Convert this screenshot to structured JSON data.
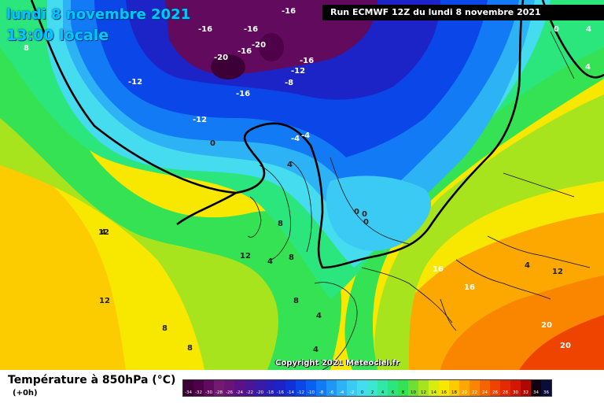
{
  "header": {
    "title_line1": "lundi 8 novembre 2021",
    "title_line2": "13:00 locale",
    "run_label": "Run ECMWF 12Z du lundi 8 novembre 2021"
  },
  "map": {
    "variable": "Température à 850hPa",
    "isotherm_labels": [
      "-16",
      "-16",
      "-16",
      "-20",
      "-16",
      "-20",
      "-16",
      "-12",
      "-8",
      "-12",
      "-16",
      "-12",
      "-4",
      "-4",
      "0",
      "0",
      "4",
      "8",
      "8",
      "4",
      "12",
      "8",
      "8",
      "4",
      "12",
      "8",
      "12",
      "4",
      "0",
      "0",
      "16",
      "16",
      "12",
      "20",
      "20",
      "4",
      "4",
      "4",
      "0",
      "-4",
      "4",
      "8"
    ]
  },
  "legend": {
    "title": "Température à 850hPa (°C)",
    "subtitle": "(+0h)",
    "scale": [
      {
        "label": "-34",
        "color": "#3c0036"
      },
      {
        "label": "-32",
        "color": "#4e0048"
      },
      {
        "label": "-30",
        "color": "#620a5e"
      },
      {
        "label": "-28",
        "color": "#751a72"
      },
      {
        "label": "-26",
        "color": "#6a1478"
      },
      {
        "label": "-24",
        "color": "#5c1286"
      },
      {
        "label": "-22",
        "color": "#4a1696"
      },
      {
        "label": "-20",
        "color": "#3a1aa6"
      },
      {
        "label": "-18",
        "color": "#2a1eb8"
      },
      {
        "label": "-16",
        "color": "#1c24c8"
      },
      {
        "label": "-14",
        "color": "#1030d8"
      },
      {
        "label": "-12",
        "color": "#0a46e8"
      },
      {
        "label": "-10",
        "color": "#0a5ef0"
      },
      {
        "label": "-8",
        "color": "#127af4"
      },
      {
        "label": "-6",
        "color": "#2096f6"
      },
      {
        "label": "-4",
        "color": "#2eb2f6"
      },
      {
        "label": "-2",
        "color": "#3acaf4"
      },
      {
        "label": "0",
        "color": "#44dcee"
      },
      {
        "label": "2",
        "color": "#3ce6d0"
      },
      {
        "label": "4",
        "color": "#32e8a8"
      },
      {
        "label": "6",
        "color": "#2ae67c"
      },
      {
        "label": "8",
        "color": "#34e254"
      },
      {
        "label": "10",
        "color": "#6ee034"
      },
      {
        "label": "12",
        "color": "#a8e41e"
      },
      {
        "label": "14",
        "color": "#d8ec10"
      },
      {
        "label": "16",
        "color": "#f8e800"
      },
      {
        "label": "18",
        "color": "#fccc00"
      },
      {
        "label": "20",
        "color": "#fca800"
      },
      {
        "label": "22",
        "color": "#fa8600"
      },
      {
        "label": "24",
        "color": "#f66400"
      },
      {
        "label": "26",
        "color": "#ee4400"
      },
      {
        "label": "28",
        "color": "#e42a00"
      },
      {
        "label": "30",
        "color": "#d41800"
      },
      {
        "label": "32",
        "color": "#b00800"
      },
      {
        "label": "34",
        "color": "#100010"
      },
      {
        "label": "36",
        "color": "#0c0c38"
      }
    ]
  },
  "footer": {
    "copyright": "Copyright 2021 Meteociel.fr"
  }
}
